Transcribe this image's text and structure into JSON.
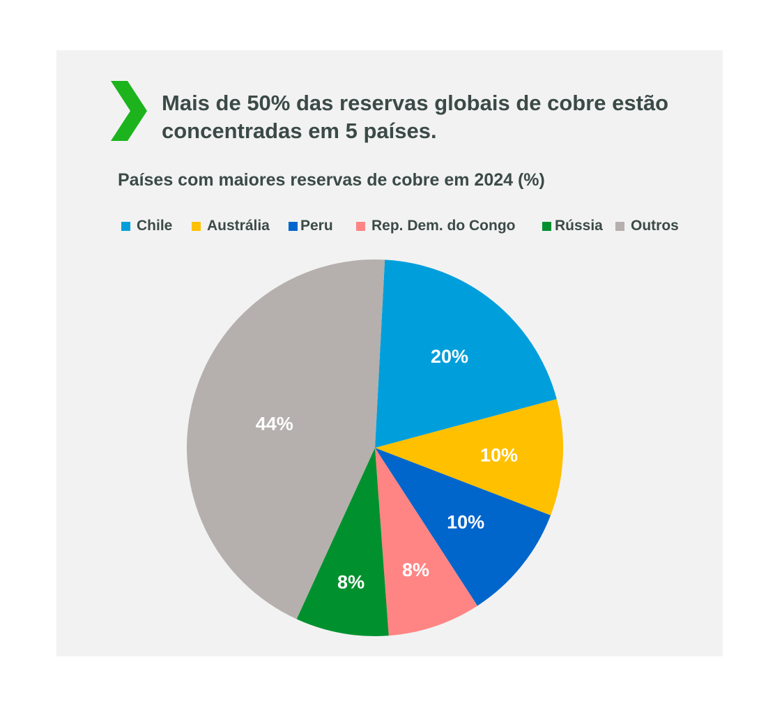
{
  "header": {
    "headline": "Mais de 50% das reservas globais de cobre estão concentradas em 5 países."
  },
  "colors": {
    "panel_background": "#f2f2f2",
    "accent_chevron": "#1db31d",
    "text": "#3b4a47"
  },
  "chart_data": {
    "type": "pie",
    "title": "Países com maiores reservas de cobre em 2024 (%)",
    "legend_position": "top",
    "slices": [
      {
        "name": "Chile",
        "value": 20,
        "label": "20%",
        "color": "#009fdc"
      },
      {
        "name": "Austrália",
        "value": 10,
        "label": "10%",
        "color": "#ffc000"
      },
      {
        "name": "Peru",
        "value": 10,
        "label": "10%",
        "color": "#0066cc"
      },
      {
        "name": "Rep. Dem. do Congo",
        "value": 8,
        "label": "8%",
        "color": "#ff8585"
      },
      {
        "name": "Rússia",
        "value": 8,
        "label": "8%",
        "color": "#00912e"
      },
      {
        "name": "Outros",
        "value": 44,
        "label": "44%",
        "color": "#b5b0ad"
      }
    ]
  }
}
